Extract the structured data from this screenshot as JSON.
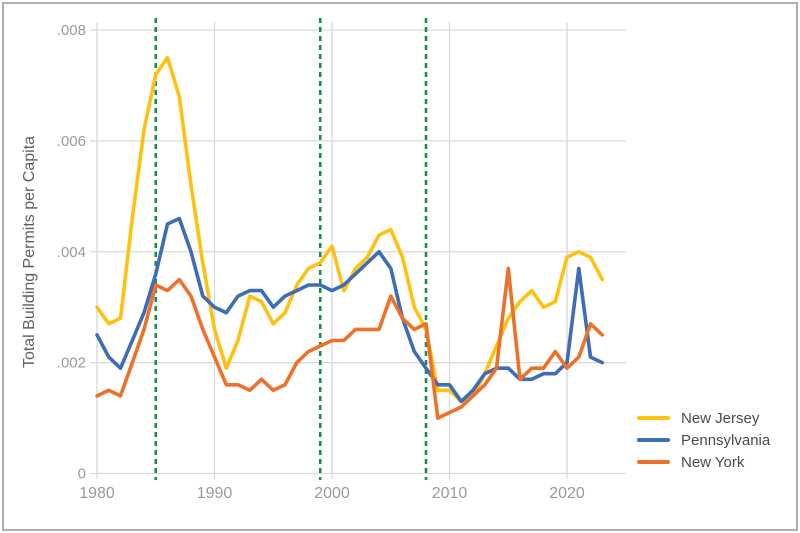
{
  "chart_data": {
    "type": "line",
    "title": "",
    "xlabel": "",
    "ylabel": "Total Building Permits per Capita",
    "x": [
      1980,
      1981,
      1982,
      1983,
      1984,
      1985,
      1986,
      1987,
      1988,
      1989,
      1990,
      1991,
      1992,
      1993,
      1994,
      1995,
      1996,
      1997,
      1998,
      1999,
      2000,
      2001,
      2002,
      2003,
      2004,
      2005,
      2006,
      2007,
      2008,
      2009,
      2010,
      2011,
      2012,
      2013,
      2014,
      2015,
      2016,
      2017,
      2018,
      2019,
      2020,
      2021,
      2022,
      2023
    ],
    "series": [
      {
        "name": "New Jersey",
        "color": "#FFC110",
        "values": [
          0.003,
          0.0027,
          0.0028,
          0.0046,
          0.0062,
          0.0072,
          0.0075,
          0.0068,
          0.0052,
          0.0038,
          0.0026,
          0.0019,
          0.0024,
          0.0032,
          0.0031,
          0.0027,
          0.0029,
          0.0034,
          0.0037,
          0.0038,
          0.0041,
          0.0033,
          0.0037,
          0.0039,
          0.0043,
          0.0044,
          0.0039,
          0.003,
          0.0026,
          0.0015,
          0.0015,
          0.0013,
          0.0014,
          0.0018,
          0.0023,
          0.0028,
          0.0031,
          0.0033,
          0.003,
          0.0031,
          0.0039,
          0.004,
          0.0039,
          0.0035
        ]
      },
      {
        "name": "Pennsylvania",
        "color": "#3E6DB5",
        "values": [
          0.0025,
          0.0021,
          0.0019,
          0.0024,
          0.0029,
          0.0036,
          0.0045,
          0.0046,
          0.004,
          0.0032,
          0.003,
          0.0029,
          0.0032,
          0.0033,
          0.0033,
          0.003,
          0.0032,
          0.0033,
          0.0034,
          0.0034,
          0.0033,
          0.0034,
          0.0036,
          0.0038,
          0.004,
          0.0037,
          0.0028,
          0.0022,
          0.0019,
          0.0016,
          0.0016,
          0.0013,
          0.0015,
          0.0018,
          0.0019,
          0.0019,
          0.0017,
          0.0017,
          0.0018,
          0.0018,
          0.002,
          0.0037,
          0.0021,
          0.002
        ]
      },
      {
        "name": "New York",
        "color": "#ED7128",
        "values": [
          0.0014,
          0.0015,
          0.0014,
          0.002,
          0.0026,
          0.0034,
          0.0033,
          0.0035,
          0.0032,
          0.0026,
          0.0021,
          0.0016,
          0.0016,
          0.0015,
          0.0017,
          0.0015,
          0.0016,
          0.002,
          0.0022,
          0.0023,
          0.0024,
          0.0024,
          0.0026,
          0.0026,
          0.0026,
          0.0032,
          0.0028,
          0.0026,
          0.0027,
          0.001,
          0.0011,
          0.0012,
          0.0014,
          0.0016,
          0.0019,
          0.0037,
          0.0017,
          0.0019,
          0.0019,
          0.0022,
          0.0019,
          0.0021,
          0.0027,
          0.0025
        ]
      }
    ],
    "x_ticks": [
      1980,
      1990,
      2000,
      2010,
      2020
    ],
    "y_ticks": [
      0,
      0.002,
      0.004,
      0.006,
      0.008
    ],
    "y_tick_labels": [
      "0",
      ".002",
      ".004",
      ".006",
      ".008"
    ],
    "ylim": [
      0,
      0.008
    ],
    "xlim": [
      1980,
      2025
    ],
    "grid": true,
    "legend_position": "bottom-right-outside",
    "reference_lines": {
      "x_values": [
        1985,
        1999,
        2008
      ],
      "style": "dashed",
      "color": "#119245"
    }
  },
  "colors": {
    "grid": "#d9d9d9",
    "tick_label": "#9a9a9a",
    "axis_title": "#5f5f5f",
    "legend_text": "#4a4a4a",
    "frame": "#aab0b6",
    "background": "#ffffff"
  }
}
